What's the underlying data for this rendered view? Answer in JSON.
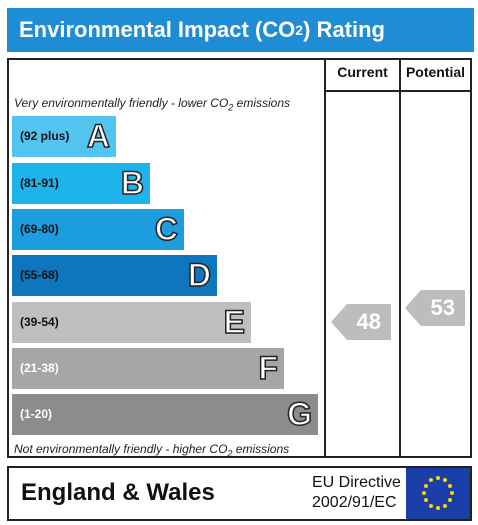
{
  "header": {
    "title_pre": "Environmental Impact (CO",
    "title_sub": "2",
    "title_post": ") Rating"
  },
  "columns": {
    "current": "Current",
    "potential": "Potential"
  },
  "top_note": {
    "pre": "Very environmentally friendly - lower CO",
    "sub": "2",
    "post": " emissions"
  },
  "bottom_note": {
    "pre": "Not environmentally friendly - higher CO",
    "sub": "2",
    "post": " emissions"
  },
  "bands": [
    {
      "range": "(92 plus)",
      "letter": "A",
      "color": "#55c3f0"
    },
    {
      "range": "(81-91)",
      "letter": "B",
      "color": "#1fb3ec"
    },
    {
      "range": "(69-80)",
      "letter": "C",
      "color": "#1c9ddd"
    },
    {
      "range": "(55-68)",
      "letter": "D",
      "color": "#0e76bc"
    },
    {
      "range": "(39-54)",
      "letter": "E",
      "color": "#bfbfbf"
    },
    {
      "range": "(21-38)",
      "letter": "F",
      "color": "#a6a6a6"
    },
    {
      "range": "(1-20)",
      "letter": "G",
      "color": "#8c8c8c"
    }
  ],
  "ratings": {
    "current": "48",
    "potential": "53"
  },
  "footer": {
    "region": "England & Wales",
    "directive_line1": "EU Directive",
    "directive_line2": "2002/91/EC"
  }
}
